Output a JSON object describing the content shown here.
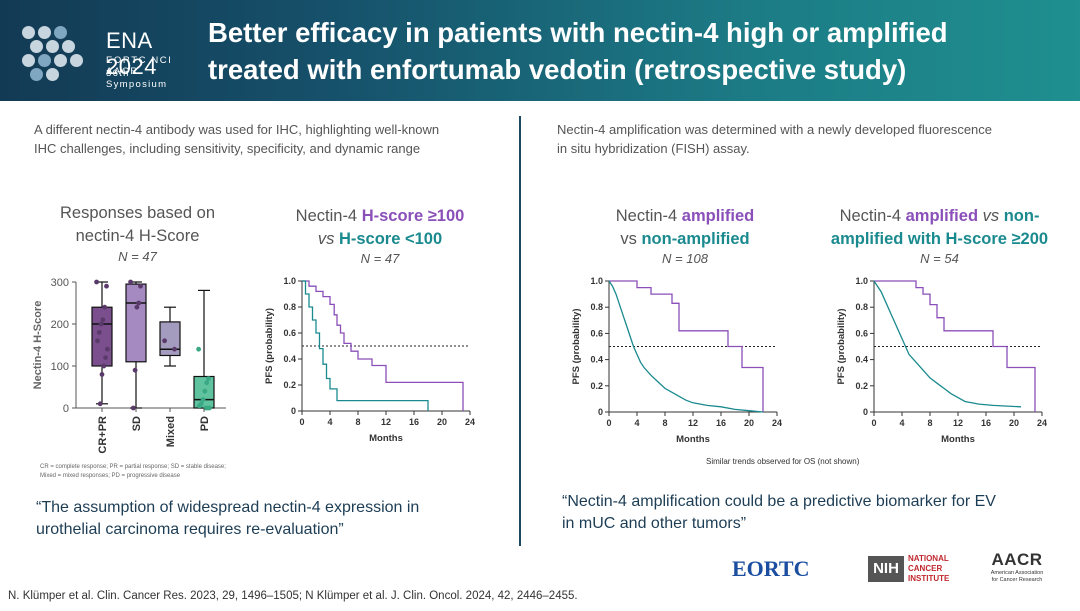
{
  "header": {
    "logo_title": "ENA 2024",
    "logo_sub": "EORTC  NCI  AACR",
    "logo_symposium": "36th Symposium",
    "title_line1": "Better efficacy in patients with nectin-4 high or amplified",
    "title_line2": "treated with enfortumab vedotin (retrospective study)"
  },
  "left": {
    "lead_line1": "A different nectin-4 antibody was used for IHC, highlighting well-known",
    "lead_line2": "IHC challenges, including sensitivity, specificity, and dynamic range",
    "box_title_line1": "Responses based on",
    "box_title_line2": "nectin-4 H-Score",
    "box_n": "N = 47",
    "km_title_a": "Nectin-4 ",
    "km_title_b": "H-score ≥100",
    "km_title_c": "vs ",
    "km_title_d": "H-score <100",
    "km_n": "N = 47",
    "abbrev_line1": "CR = complete response; PR = partial response; SD = stable disease;",
    "abbrev_line2": "Mixed = mixed responses; PD = progressive disease",
    "quote_line1": "“The assumption of widespread nectin-4 expression in",
    "quote_line2": "urothelial carcinoma requires re-evaluation”"
  },
  "right": {
    "lead_line1": "Nectin-4 amplification was determined with a newly developed fluorescence",
    "lead_line2": "in situ hybridization (FISH) assay.",
    "km1_title_a": "Nectin-4 ",
    "km1_title_b": "amplified",
    "km1_title_c": "vs ",
    "km1_title_d": "non-amplified",
    "km1_n": "N = 108",
    "km2_title_a": "Nectin-4 ",
    "km2_title_b": "amplified",
    "km2_title_c": " vs ",
    "km2_title_d": "non-",
    "km2_title_e": "amplified with H-score ≥200",
    "km2_n": "N = 54",
    "os_note": "Similar trends observed for OS (not shown)",
    "quote_line1": "“Nectin-4 amplification could be a predictive biomarker for EV",
    "quote_line2": "in mUC and other tumors”"
  },
  "footer": {
    "ref": "N. Klümper et al. Clin. Cancer Res. 2023, 29, 1496–1505; N Klümper et al. J. Clin. Oncol. 2024, 42, 2446–2455."
  },
  "logos": {
    "eortc": "EORTC",
    "nih": "NIH",
    "nci_line1": "NATIONAL",
    "nci_line2": "CANCER",
    "nci_line3": "INSTITUTE",
    "aacr": "AACR",
    "aacr_sub1": "American Association",
    "aacr_sub2": "for Cancer Research"
  },
  "colors": {
    "purple": "#8a4fb8",
    "teal": "#1a8a8f",
    "box_purple": "#7b4f8e",
    "box_lilac": "#a48ac0",
    "box_grey": "#a49cbf",
    "box_mint": "#5fc3a0"
  },
  "chart_data": [
    {
      "type": "box",
      "title": "Responses based on nectin-4 H-Score",
      "ylabel": "Nectin-4 H-Score",
      "ylim": [
        0,
        300
      ],
      "yticks": [
        0,
        100,
        200,
        300
      ],
      "categories": [
        "CR+PR",
        "SD",
        "Mixed",
        "PD"
      ],
      "boxes": [
        {
          "name": "CR+PR",
          "min": 10,
          "q1": 100,
          "median": 200,
          "q3": 240,
          "max": 300,
          "points": [
            300,
            290,
            240,
            210,
            200,
            180,
            160,
            140,
            120,
            100,
            80,
            10
          ]
        },
        {
          "name": "SD",
          "min": 0,
          "q1": 110,
          "median": 250,
          "q3": 295,
          "max": 300,
          "points": [
            300,
            290,
            250,
            240,
            90,
            0
          ]
        },
        {
          "name": "Mixed",
          "min": 100,
          "q1": 125,
          "median": 140,
          "q3": 205,
          "max": 240,
          "points": [
            160,
            140
          ]
        },
        {
          "name": "PD",
          "min": 0,
          "q1": 0,
          "median": 20,
          "q3": 75,
          "max": 280,
          "points": [
            140,
            70,
            60,
            40,
            20,
            10,
            5,
            0,
            0,
            0
          ]
        }
      ]
    },
    {
      "type": "line",
      "title": "Nectin-4 H-score ≥100 vs H-score <100",
      "xlabel": "Months",
      "ylabel": "PFS (probability)",
      "xlim": [
        0,
        24
      ],
      "ylim": [
        0,
        1.0
      ],
      "xticks": [
        0,
        4,
        8,
        12,
        16,
        20,
        24
      ],
      "yticks": [
        0,
        0.2,
        0.4,
        0.6,
        0.8,
        1.0
      ],
      "reference_y": 0.5,
      "series": [
        {
          "name": "H-score ≥100",
          "color": "#8a4fb8",
          "points": [
            [
              0,
              1
            ],
            [
              1,
              1
            ],
            [
              1,
              0.96
            ],
            [
              2,
              0.96
            ],
            [
              2,
              0.92
            ],
            [
              3,
              0.92
            ],
            [
              3,
              0.88
            ],
            [
              4,
              0.88
            ],
            [
              4,
              0.82
            ],
            [
              4.6,
              0.82
            ],
            [
              4.6,
              0.74
            ],
            [
              5,
              0.74
            ],
            [
              5,
              0.66
            ],
            [
              5.5,
              0.66
            ],
            [
              5.5,
              0.6
            ],
            [
              6,
              0.6
            ],
            [
              6,
              0.52
            ],
            [
              7,
              0.52
            ],
            [
              7,
              0.46
            ],
            [
              8,
              0.46
            ],
            [
              8,
              0.4
            ],
            [
              10,
              0.4
            ],
            [
              10,
              0.35
            ],
            [
              12,
              0.35
            ],
            [
              12,
              0.22
            ],
            [
              23,
              0.22
            ],
            [
              23,
              0
            ]
          ]
        },
        {
          "name": "H-score <100",
          "color": "#1a8a8f",
          "points": [
            [
              0,
              1
            ],
            [
              0.5,
              1
            ],
            [
              0.5,
              0.9
            ],
            [
              1,
              0.9
            ],
            [
              1,
              0.8
            ],
            [
              1.5,
              0.8
            ],
            [
              1.5,
              0.7
            ],
            [
              2,
              0.7
            ],
            [
              2,
              0.6
            ],
            [
              2.5,
              0.6
            ],
            [
              2.5,
              0.48
            ],
            [
              3,
              0.48
            ],
            [
              3,
              0.36
            ],
            [
              3.5,
              0.36
            ],
            [
              3.5,
              0.25
            ],
            [
              4,
              0.25
            ],
            [
              4,
              0.17
            ],
            [
              5,
              0.17
            ],
            [
              5,
              0.08
            ],
            [
              18,
              0.08
            ],
            [
              18,
              0
            ]
          ]
        }
      ]
    },
    {
      "type": "line",
      "title": "Nectin-4 amplified vs non-amplified",
      "xlabel": "Months",
      "ylabel": "PFS (probability)",
      "xlim": [
        0,
        24
      ],
      "ylim": [
        0,
        1.0
      ],
      "xticks": [
        0,
        4,
        8,
        12,
        16,
        20,
        24
      ],
      "yticks": [
        0,
        0.2,
        0.4,
        0.6,
        0.8,
        1.0
      ],
      "reference_y": 0.5,
      "series": [
        {
          "name": "amplified",
          "color": "#8a4fb8",
          "points": [
            [
              0,
              1
            ],
            [
              4,
              1
            ],
            [
              4,
              0.95
            ],
            [
              6,
              0.95
            ],
            [
              6,
              0.9
            ],
            [
              9,
              0.9
            ],
            [
              9,
              0.83
            ],
            [
              10,
              0.83
            ],
            [
              10,
              0.62
            ],
            [
              17,
              0.62
            ],
            [
              17,
              0.5
            ],
            [
              19,
              0.5
            ],
            [
              19,
              0.34
            ],
            [
              22,
              0.34
            ],
            [
              22,
              0
            ]
          ]
        },
        {
          "name": "non-amplified",
          "color": "#1a8a8f",
          "points": [
            [
              0,
              1
            ],
            [
              0.5,
              0.96
            ],
            [
              1,
              0.9
            ],
            [
              1.5,
              0.82
            ],
            [
              2,
              0.74
            ],
            [
              2.5,
              0.66
            ],
            [
              3,
              0.58
            ],
            [
              3.5,
              0.5
            ],
            [
              4,
              0.44
            ],
            [
              4.5,
              0.38
            ],
            [
              5,
              0.34
            ],
            [
              6,
              0.28
            ],
            [
              7,
              0.23
            ],
            [
              8,
              0.18
            ],
            [
              9,
              0.15
            ],
            [
              10,
              0.12
            ],
            [
              11,
              0.09
            ],
            [
              12,
              0.07
            ],
            [
              14,
              0.05
            ],
            [
              16,
              0.04
            ],
            [
              18,
              0.02
            ],
            [
              20,
              0.01
            ],
            [
              22,
              0
            ]
          ]
        }
      ]
    },
    {
      "type": "line",
      "title": "Nectin-4 amplified vs non-amplified with H-score ≥200",
      "xlabel": "Months",
      "ylabel": "PFS (probability)",
      "xlim": [
        0,
        24
      ],
      "ylim": [
        0,
        1.0
      ],
      "xticks": [
        0,
        4,
        8,
        12,
        16,
        20,
        24
      ],
      "yticks": [
        0,
        0.2,
        0.4,
        0.6,
        0.8,
        1.0
      ],
      "reference_y": 0.5,
      "series": [
        {
          "name": "amplified",
          "color": "#8a4fb8",
          "points": [
            [
              0,
              1
            ],
            [
              6,
              1
            ],
            [
              6,
              0.95
            ],
            [
              7,
              0.95
            ],
            [
              7,
              0.9
            ],
            [
              8,
              0.9
            ],
            [
              8,
              0.82
            ],
            [
              9,
              0.82
            ],
            [
              9,
              0.72
            ],
            [
              10,
              0.72
            ],
            [
              10,
              0.62
            ],
            [
              17,
              0.62
            ],
            [
              17,
              0.5
            ],
            [
              19,
              0.5
            ],
            [
              19,
              0.34
            ],
            [
              23,
              0.34
            ],
            [
              23,
              0
            ]
          ]
        },
        {
          "name": "non-amplified H-score ≥200",
          "color": "#1a8a8f",
          "points": [
            [
              0,
              1
            ],
            [
              0.5,
              0.96
            ],
            [
              1,
              0.92
            ],
            [
              1.5,
              0.86
            ],
            [
              2,
              0.8
            ],
            [
              2.5,
              0.74
            ],
            [
              3,
              0.68
            ],
            [
              3.5,
              0.62
            ],
            [
              4,
              0.56
            ],
            [
              4.5,
              0.5
            ],
            [
              5,
              0.44
            ],
            [
              6,
              0.38
            ],
            [
              7,
              0.32
            ],
            [
              8,
              0.26
            ],
            [
              9,
              0.22
            ],
            [
              10,
              0.18
            ],
            [
              11,
              0.14
            ],
            [
              12,
              0.11
            ],
            [
              13,
              0.08
            ],
            [
              15,
              0.06
            ],
            [
              17,
              0.05
            ],
            [
              21,
              0.04
            ],
            [
              21,
              0.04
            ]
          ]
        }
      ]
    }
  ]
}
